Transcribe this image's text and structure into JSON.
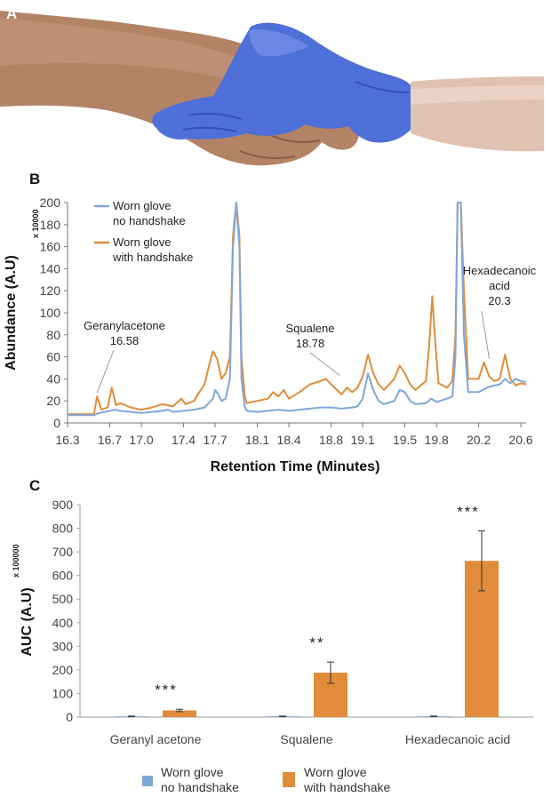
{
  "panels": {
    "a": "A",
    "b": "B",
    "c": "C"
  },
  "colors": {
    "series1": "#7ea7d8",
    "series2": "#e08c3a",
    "glove": "#4f6fd9",
    "skin": "#b9866a"
  },
  "photo": {
    "icon": "handshake-photo-icon"
  },
  "chart_data": [
    {
      "type": "line",
      "xlabel": "Retention Time (Minutes)",
      "ylabel": "Abundance (A.U)",
      "y_multiplier": "x 10000",
      "xlim": [
        16.3,
        20.65
      ],
      "ylim": [
        0,
        200
      ],
      "xticks": [
        16.3,
        16.7,
        17.0,
        17.4,
        17.7,
        18.1,
        18.4,
        18.8,
        19.1,
        19.5,
        19.8,
        20.2,
        20.6
      ],
      "xtick_labels": [
        "16.3",
        "16.7",
        "17.0",
        "17.4",
        "17.7",
        "18.1",
        "18.4",
        "18.8",
        "19.1",
        "19.5",
        "19.8",
        "20.2",
        "20.6"
      ],
      "yticks": [
        0,
        20,
        40,
        60,
        80,
        100,
        120,
        140,
        160,
        180,
        200
      ],
      "legend_position": "top-left",
      "series": [
        {
          "name_line1": "Worn glove",
          "name_line2": "no handshake",
          "points": [
            [
              16.3,
              7
            ],
            [
              16.55,
              7
            ],
            [
              16.57,
              8
            ],
            [
              16.6,
              9
            ],
            [
              16.65,
              10
            ],
            [
              16.7,
              11
            ],
            [
              16.75,
              12
            ],
            [
              16.8,
              11
            ],
            [
              16.9,
              10
            ],
            [
              17.0,
              9
            ],
            [
              17.1,
              10
            ],
            [
              17.2,
              11
            ],
            [
              17.25,
              12
            ],
            [
              17.3,
              10
            ],
            [
              17.4,
              11
            ],
            [
              17.5,
              12
            ],
            [
              17.6,
              14
            ],
            [
              17.68,
              22
            ],
            [
              17.7,
              30
            ],
            [
              17.73,
              26
            ],
            [
              17.76,
              20
            ],
            [
              17.8,
              22
            ],
            [
              17.84,
              40
            ],
            [
              17.87,
              160
            ],
            [
              17.9,
              200
            ],
            [
              17.93,
              160
            ],
            [
              17.95,
              40
            ],
            [
              17.98,
              15
            ],
            [
              18.0,
              11
            ],
            [
              18.1,
              10
            ],
            [
              18.2,
              11
            ],
            [
              18.3,
              12
            ],
            [
              18.4,
              11
            ],
            [
              18.5,
              12
            ],
            [
              18.6,
              13
            ],
            [
              18.7,
              14
            ],
            [
              18.8,
              14
            ],
            [
              18.9,
              13
            ],
            [
              19.0,
              14
            ],
            [
              19.05,
              15
            ],
            [
              19.1,
              22
            ],
            [
              19.15,
              45
            ],
            [
              19.2,
              30
            ],
            [
              19.25,
              20
            ],
            [
              19.3,
              17
            ],
            [
              19.4,
              20
            ],
            [
              19.45,
              30
            ],
            [
              19.5,
              28
            ],
            [
              19.55,
              20
            ],
            [
              19.6,
              17
            ],
            [
              19.7,
              18
            ],
            [
              19.75,
              22
            ],
            [
              19.8,
              19
            ],
            [
              19.9,
              22
            ],
            [
              19.95,
              24
            ],
            [
              19.98,
              60
            ],
            [
              20.0,
              200
            ],
            [
              20.03,
              200
            ],
            [
              20.06,
              80
            ],
            [
              20.1,
              28
            ],
            [
              20.2,
              28
            ],
            [
              20.3,
              33
            ],
            [
              20.4,
              35
            ],
            [
              20.45,
              40
            ],
            [
              20.5,
              36
            ],
            [
              20.55,
              40
            ],
            [
              20.6,
              38
            ],
            [
              20.65,
              37
            ]
          ]
        },
        {
          "name_line1": "Worn glove",
          "name_line2": "with handshake",
          "points": [
            [
              16.3,
              8
            ],
            [
              16.55,
              8
            ],
            [
              16.58,
              24
            ],
            [
              16.62,
              12
            ],
            [
              16.68,
              14
            ],
            [
              16.72,
              32
            ],
            [
              16.76,
              16
            ],
            [
              16.8,
              18
            ],
            [
              16.85,
              16
            ],
            [
              16.9,
              14
            ],
            [
              17.0,
              12
            ],
            [
              17.1,
              14
            ],
            [
              17.2,
              17
            ],
            [
              17.3,
              15
            ],
            [
              17.38,
              22
            ],
            [
              17.42,
              17
            ],
            [
              17.5,
              20
            ],
            [
              17.55,
              28
            ],
            [
              17.6,
              35
            ],
            [
              17.65,
              55
            ],
            [
              17.68,
              65
            ],
            [
              17.72,
              58
            ],
            [
              17.76,
              40
            ],
            [
              17.8,
              45
            ],
            [
              17.84,
              60
            ],
            [
              17.87,
              170
            ],
            [
              17.9,
              200
            ],
            [
              17.93,
              170
            ],
            [
              17.95,
              60
            ],
            [
              17.98,
              25
            ],
            [
              18.0,
              18
            ],
            [
              18.1,
              20
            ],
            [
              18.2,
              22
            ],
            [
              18.25,
              28
            ],
            [
              18.3,
              24
            ],
            [
              18.35,
              30
            ],
            [
              18.4,
              22
            ],
            [
              18.5,
              28
            ],
            [
              18.6,
              35
            ],
            [
              18.7,
              38
            ],
            [
              18.75,
              40
            ],
            [
              18.8,
              35
            ],
            [
              18.9,
              26
            ],
            [
              18.95,
              32
            ],
            [
              19.0,
              28
            ],
            [
              19.05,
              32
            ],
            [
              19.1,
              42
            ],
            [
              19.15,
              62
            ],
            [
              19.2,
              45
            ],
            [
              19.25,
              35
            ],
            [
              19.3,
              30
            ],
            [
              19.4,
              40
            ],
            [
              19.45,
              52
            ],
            [
              19.5,
              45
            ],
            [
              19.55,
              35
            ],
            [
              19.6,
              30
            ],
            [
              19.7,
              38
            ],
            [
              19.73,
              70
            ],
            [
              19.76,
              115
            ],
            [
              19.79,
              70
            ],
            [
              19.82,
              36
            ],
            [
              19.9,
              32
            ],
            [
              19.95,
              38
            ],
            [
              19.98,
              80
            ],
            [
              20.0,
              200
            ],
            [
              20.03,
              200
            ],
            [
              20.06,
              120
            ],
            [
              20.1,
              40
            ],
            [
              20.2,
              40
            ],
            [
              20.25,
              55
            ],
            [
              20.3,
              42
            ],
            [
              20.35,
              38
            ],
            [
              20.4,
              40
            ],
            [
              20.45,
              62
            ],
            [
              20.5,
              40
            ],
            [
              20.55,
              34
            ],
            [
              20.6,
              36
            ],
            [
              20.65,
              35
            ]
          ]
        }
      ],
      "annotations": [
        {
          "name": "Geranylacetone",
          "value": "16.58",
          "x": 16.58
        },
        {
          "name": "Squalene",
          "value": "18.78",
          "x": 18.78
        },
        {
          "name_line1": "Hexadecanoic",
          "name_line2": "acid",
          "value": "20.3",
          "x": 20.3
        }
      ]
    },
    {
      "type": "bar",
      "ylabel": "AUC (A.U)",
      "y_multiplier": "x 100000",
      "ylim": [
        0,
        900
      ],
      "yticks": [
        0,
        100,
        200,
        300,
        400,
        500,
        600,
        700,
        800,
        900
      ],
      "categories": [
        "Geranyl acetone",
        "Squalene",
        "Hexadecanoic acid"
      ],
      "legend_position": "bottom",
      "series": [
        {
          "name_line1": "Worn glove",
          "name_line2": "no handshake",
          "values": [
            3,
            3,
            3
          ],
          "errors": [
            1,
            1,
            1
          ]
        },
        {
          "name_line1": "Worn glove",
          "name_line2": "with handshake",
          "values": [
            28,
            188,
            662
          ],
          "errors": [
            5,
            45,
            127
          ]
        }
      ],
      "significance": [
        "***",
        "**",
        "***"
      ]
    }
  ]
}
